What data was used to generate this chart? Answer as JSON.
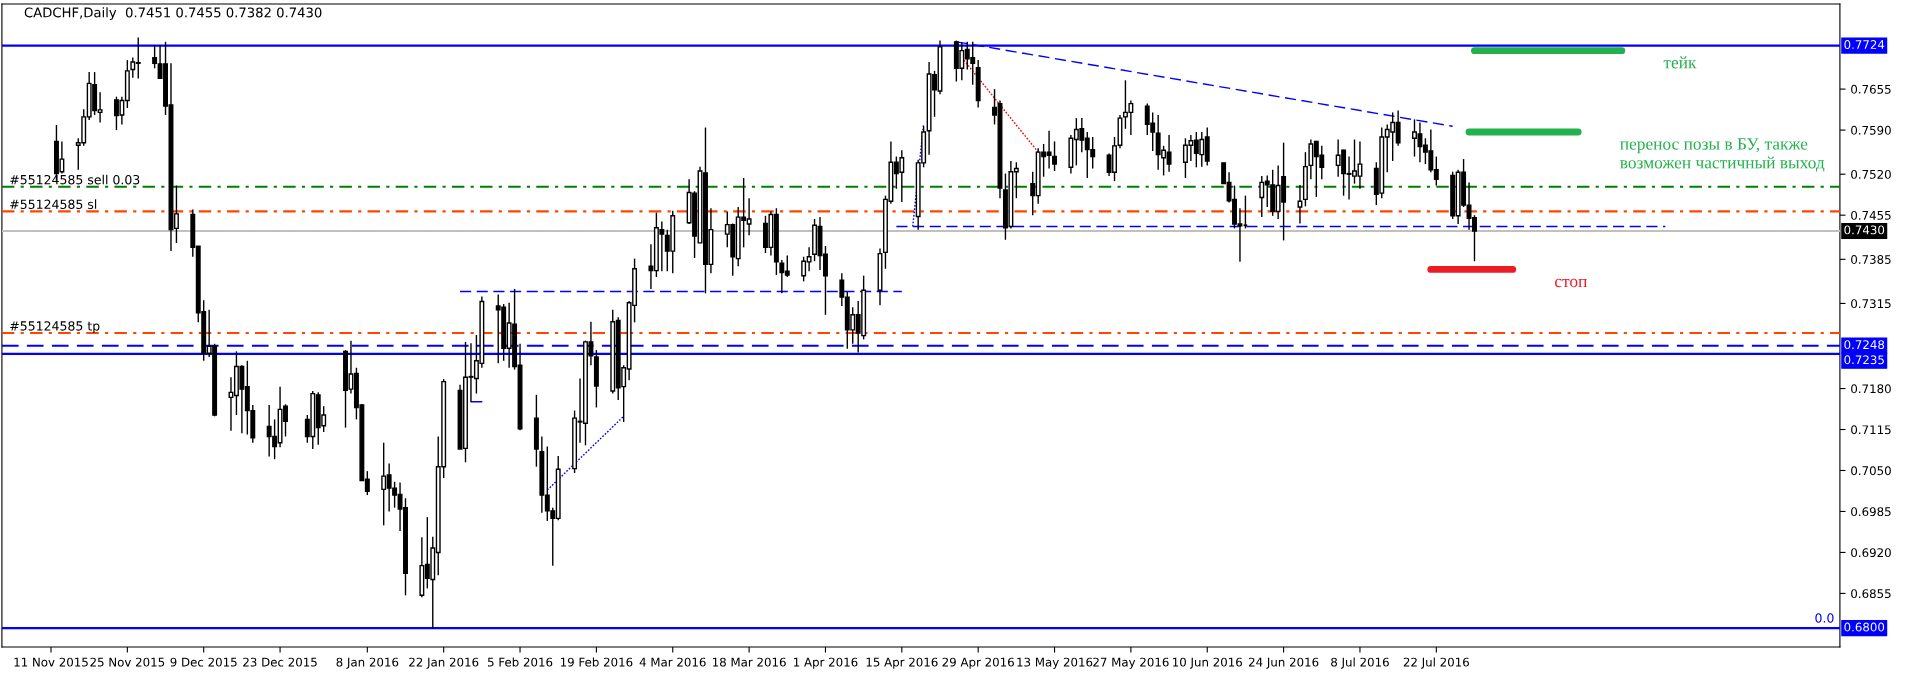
{
  "chart_data": {
    "type": "candlestick",
    "title": "CADCHF,Daily  0.7451 0.7455 0.7382 0.7430",
    "x": [
      "2015-11-12",
      "2015-11-13",
      "2015-11-16",
      "2015-11-17",
      "2015-11-18",
      "2015-11-19",
      "2015-11-20",
      "2015-11-23",
      "2015-11-24",
      "2015-11-25",
      "2015-11-26",
      "2015-11-27",
      "2015-11-30",
      "2015-12-01",
      "2015-12-02",
      "2015-12-03",
      "2015-12-04",
      "2015-12-07",
      "2015-12-08",
      "2015-12-09",
      "2015-12-10",
      "2015-12-11",
      "2015-12-14",
      "2015-12-15",
      "2015-12-16",
      "2015-12-17",
      "2015-12-18",
      "2015-12-21",
      "2015-12-22",
      "2015-12-23",
      "2015-12-24",
      "2015-12-28",
      "2015-12-29",
      "2015-12-30",
      "2015-12-31",
      "2016-01-04",
      "2016-01-05",
      "2016-01-06",
      "2016-01-07",
      "2016-01-08",
      "2016-01-11",
      "2016-01-12",
      "2016-01-13",
      "2016-01-14",
      "2016-01-15",
      "2016-01-18",
      "2016-01-19",
      "2016-01-20",
      "2016-01-21",
      "2016-01-22",
      "2016-01-25",
      "2016-01-26",
      "2016-01-27",
      "2016-01-28",
      "2016-01-29",
      "2016-02-01",
      "2016-02-02",
      "2016-02-03",
      "2016-02-04",
      "2016-02-05",
      "2016-02-08",
      "2016-02-09",
      "2016-02-10",
      "2016-02-11",
      "2016-02-12",
      "2016-02-15",
      "2016-02-16",
      "2016-02-17",
      "2016-02-18",
      "2016-02-19",
      "2016-02-22",
      "2016-02-23",
      "2016-02-24",
      "2016-02-25",
      "2016-02-26",
      "2016-02-29",
      "2016-03-01",
      "2016-03-02",
      "2016-03-03",
      "2016-03-04",
      "2016-03-07",
      "2016-03-08",
      "2016-03-09",
      "2016-03-10",
      "2016-03-11",
      "2016-03-14",
      "2016-03-15",
      "2016-03-16",
      "2016-03-17",
      "2016-03-18",
      "2016-03-21",
      "2016-03-22",
      "2016-03-23",
      "2016-03-24",
      "2016-03-25",
      "2016-03-28",
      "2016-03-29",
      "2016-03-30",
      "2016-03-31",
      "2016-04-01",
      "2016-04-04",
      "2016-04-05",
      "2016-04-06",
      "2016-04-07",
      "2016-04-08",
      "2016-04-11",
      "2016-04-12",
      "2016-04-13",
      "2016-04-14",
      "2016-04-15",
      "2016-04-18",
      "2016-04-19",
      "2016-04-20",
      "2016-04-21",
      "2016-04-22",
      "2016-04-25",
      "2016-04-26",
      "2016-04-27",
      "2016-04-28",
      "2016-04-29",
      "2016-05-02",
      "2016-05-03",
      "2016-05-04",
      "2016-05-05",
      "2016-05-06",
      "2016-05-09",
      "2016-05-10",
      "2016-05-11",
      "2016-05-12",
      "2016-05-13",
      "2016-05-16",
      "2016-05-17",
      "2016-05-18",
      "2016-05-19",
      "2016-05-20",
      "2016-05-23",
      "2016-05-24",
      "2016-05-25",
      "2016-05-26",
      "2016-05-27",
      "2016-05-30",
      "2016-05-31",
      "2016-06-01",
      "2016-06-02",
      "2016-06-03",
      "2016-06-06",
      "2016-06-07",
      "2016-06-08",
      "2016-06-09",
      "2016-06-10",
      "2016-06-13",
      "2016-06-14",
      "2016-06-15",
      "2016-06-16",
      "2016-06-17",
      "2016-06-20",
      "2016-06-21",
      "2016-06-22",
      "2016-06-23",
      "2016-06-24",
      "2016-06-27",
      "2016-06-28",
      "2016-06-29",
      "2016-06-30",
      "2016-07-01",
      "2016-07-04",
      "2016-07-05",
      "2016-07-06",
      "2016-07-07",
      "2016-07-08",
      "2016-07-11",
      "2016-07-12",
      "2016-07-13",
      "2016-07-14",
      "2016-07-15",
      "2016-07-18",
      "2016-07-19",
      "2016-07-20",
      "2016-07-21",
      "2016-07-22",
      "2016-07-25",
      "2016-07-26",
      "2016-07-27",
      "2016-07-28",
      "2016-07-29"
    ],
    "ohlc": [
      [
        0.7572,
        0.7598,
        0.751,
        0.7521
      ],
      [
        0.7524,
        0.7572,
        0.7521,
        0.7544
      ],
      [
        0.7566,
        0.7577,
        0.7527,
        0.757
      ],
      [
        0.757,
        0.7623,
        0.7565,
        0.7611
      ],
      [
        0.7611,
        0.7682,
        0.7606,
        0.7664
      ],
      [
        0.7662,
        0.7682,
        0.7614,
        0.7621
      ],
      [
        0.7618,
        0.765,
        0.7602,
        0.7622
      ],
      [
        0.7638,
        0.7643,
        0.759,
        0.7613
      ],
      [
        0.7614,
        0.7643,
        0.7599,
        0.7637
      ],
      [
        0.7637,
        0.7701,
        0.7625,
        0.7684
      ],
      [
        0.7686,
        0.7705,
        0.7673,
        0.7698
      ],
      [
        0.7696,
        0.7737,
        0.7672,
        0.7697
      ],
      [
        0.7705,
        0.7725,
        0.7688,
        0.7696
      ],
      [
        0.7695,
        0.7725,
        0.7671,
        0.7672
      ],
      [
        0.7695,
        0.773,
        0.7614,
        0.7628
      ],
      [
        0.763,
        0.7696,
        0.7398,
        0.7432
      ],
      [
        0.7434,
        0.7502,
        0.7411,
        0.7457
      ],
      [
        0.7456,
        0.7464,
        0.7389,
        0.7404
      ],
      [
        0.7406,
        0.7406,
        0.7285,
        0.73
      ],
      [
        0.7302,
        0.732,
        0.7224,
        0.7236
      ],
      [
        0.7236,
        0.7305,
        0.723,
        0.7247
      ],
      [
        0.7247,
        0.7251,
        0.7136,
        0.7138
      ],
      [
        0.7166,
        0.7198,
        0.7113,
        0.7174
      ],
      [
        0.7169,
        0.7239,
        0.7138,
        0.7215
      ],
      [
        0.7215,
        0.7217,
        0.7109,
        0.7179
      ],
      [
        0.7183,
        0.7224,
        0.7107,
        0.7145
      ],
      [
        0.7145,
        0.7154,
        0.7094,
        0.7102
      ],
      [
        0.712,
        0.7154,
        0.7072,
        0.7104
      ],
      [
        0.7104,
        0.7131,
        0.7068,
        0.7088
      ],
      [
        0.7094,
        0.7183,
        0.7087,
        0.7147
      ],
      [
        0.7152,
        0.7155,
        0.7104,
        0.7128
      ],
      [
        0.7131,
        0.7138,
        0.7094,
        0.7104
      ],
      [
        0.7104,
        0.7176,
        0.7084,
        0.7172
      ],
      [
        0.717,
        0.7174,
        0.7091,
        0.7118
      ],
      [
        0.7121,
        0.7152,
        0.7111,
        0.7138
      ],
      [
        0.7239,
        0.7241,
        0.7118,
        0.7177
      ],
      [
        0.7179,
        0.7256,
        0.7172,
        0.7203
      ],
      [
        0.7204,
        0.7213,
        0.7131,
        0.715
      ],
      [
        0.7154,
        0.7155,
        0.7034,
        0.7034
      ],
      [
        0.7036,
        0.7049,
        0.7011,
        0.7017
      ],
      [
        0.702,
        0.7094,
        0.6963,
        0.7041
      ],
      [
        0.7043,
        0.7061,
        0.6985,
        0.7022
      ],
      [
        0.7022,
        0.7032,
        0.6991,
        0.7011
      ],
      [
        0.7012,
        0.7031,
        0.6954,
        0.6989
      ],
      [
        0.6991,
        0.7006,
        0.6852,
        0.6887
      ],
      [
        0.6852,
        0.6944,
        0.6849,
        0.6899
      ],
      [
        0.6901,
        0.6976,
        0.6863,
        0.6879
      ],
      [
        0.6877,
        0.6945,
        0.6799,
        0.6927
      ],
      [
        0.692,
        0.7104,
        0.6884,
        0.7056
      ],
      [
        0.7056,
        0.7195,
        0.7038,
        0.7191
      ],
      [
        0.7177,
        0.7186,
        0.7084,
        0.7084
      ],
      [
        0.7085,
        0.7254,
        0.7063,
        0.7198
      ],
      [
        0.7198,
        0.7252,
        0.7159,
        0.7199
      ],
      [
        0.7196,
        0.7265,
        0.7172,
        0.7224
      ],
      [
        0.722,
        0.7326,
        0.7213,
        0.7318
      ],
      [
        0.7311,
        0.7329,
        0.722,
        0.7305
      ],
      [
        0.7309,
        0.7314,
        0.7224,
        0.7244
      ],
      [
        0.7244,
        0.7316,
        0.7213,
        0.7284
      ],
      [
        0.7282,
        0.7338,
        0.721,
        0.7215
      ],
      [
        0.7217,
        0.7251,
        0.7114,
        0.7116
      ],
      [
        0.7133,
        0.717,
        0.7056,
        0.7084
      ],
      [
        0.708,
        0.7104,
        0.6983,
        0.7011
      ],
      [
        0.7011,
        0.7088,
        0.697,
        0.6986
      ],
      [
        0.6986,
        0.6991,
        0.6899,
        0.6974
      ],
      [
        0.6974,
        0.7073,
        0.6971,
        0.7052
      ],
      [
        0.7053,
        0.7145,
        0.7046,
        0.7133
      ],
      [
        0.7127,
        0.7196,
        0.7094,
        0.7128
      ],
      [
        0.7125,
        0.7256,
        0.709,
        0.7254
      ],
      [
        0.7254,
        0.7286,
        0.7217,
        0.7232
      ],
      [
        0.723,
        0.7241,
        0.715,
        0.7184
      ],
      [
        0.7176,
        0.7305,
        0.7172,
        0.7286
      ],
      [
        0.7288,
        0.7293,
        0.7162,
        0.7181
      ],
      [
        0.7183,
        0.7217,
        0.7127,
        0.7213
      ],
      [
        0.7211,
        0.7319,
        0.7193,
        0.7316
      ],
      [
        0.7312,
        0.7386,
        0.7285,
        0.737
      ],
      [
        0.7374,
        0.7409,
        0.7338,
        0.7367
      ],
      [
        0.7367,
        0.7459,
        0.7357,
        0.7435
      ],
      [
        0.7432,
        0.7445,
        0.7366,
        0.7425
      ],
      [
        0.7423,
        0.7432,
        0.7366,
        0.7398
      ],
      [
        0.7398,
        0.7462,
        0.7363,
        0.7454
      ],
      [
        0.7443,
        0.7512,
        0.7441,
        0.7491
      ],
      [
        0.749,
        0.7493,
        0.7387,
        0.7422
      ],
      [
        0.7411,
        0.7532,
        0.7411,
        0.7525
      ],
      [
        0.7522,
        0.7594,
        0.7331,
        0.7377
      ],
      [
        0.7377,
        0.7466,
        0.7363,
        0.7432
      ],
      [
        0.7425,
        0.7461,
        0.7404,
        0.744
      ],
      [
        0.744,
        0.7442,
        0.7359,
        0.7389
      ],
      [
        0.7386,
        0.7468,
        0.7374,
        0.7452
      ],
      [
        0.7452,
        0.7514,
        0.7404,
        0.7447
      ],
      [
        0.7441,
        0.7482,
        0.7423,
        0.7449
      ],
      [
        0.7442,
        0.7454,
        0.7395,
        0.7404
      ],
      [
        0.7404,
        0.7461,
        0.7391,
        0.7456
      ],
      [
        0.7456,
        0.7466,
        0.736,
        0.7381
      ],
      [
        0.7379,
        0.7384,
        0.7331,
        0.7364
      ],
      [
        0.7366,
        0.7391,
        0.7357,
        0.736
      ],
      [
        0.7359,
        0.7389,
        0.735,
        0.7382
      ],
      [
        0.7381,
        0.7404,
        0.7366,
        0.7389
      ],
      [
        0.7393,
        0.7449,
        0.7382,
        0.7439
      ],
      [
        0.7437,
        0.7452,
        0.7368,
        0.7391
      ],
      [
        0.7393,
        0.7406,
        0.7297,
        0.7359
      ],
      [
        0.7352,
        0.7363,
        0.7311,
        0.7325
      ],
      [
        0.7325,
        0.7333,
        0.7243,
        0.7273
      ],
      [
        0.7273,
        0.7309,
        0.7251,
        0.7297
      ],
      [
        0.7297,
        0.7319,
        0.7237,
        0.7268
      ],
      [
        0.7264,
        0.7359,
        0.7258,
        0.7336
      ],
      [
        0.7336,
        0.7402,
        0.7312,
        0.7394
      ],
      [
        0.7396,
        0.7486,
        0.737,
        0.748
      ],
      [
        0.7477,
        0.7572,
        0.7473,
        0.7539
      ],
      [
        0.7539,
        0.7548,
        0.7497,
        0.7521
      ],
      [
        0.7523,
        0.7558,
        0.7476,
        0.7546
      ],
      [
        0.7453,
        0.7543,
        0.7432,
        0.7538
      ],
      [
        0.7538,
        0.7596,
        0.7531,
        0.7587
      ],
      [
        0.7589,
        0.7698,
        0.7551,
        0.7679
      ],
      [
        0.7678,
        0.7684,
        0.7611,
        0.7654
      ],
      [
        0.7652,
        0.7732,
        0.7647,
        0.7722
      ],
      [
        0.773,
        0.7732,
        0.7667,
        0.7688
      ],
      [
        0.7688,
        0.7729,
        0.7669,
        0.7716
      ],
      [
        0.7718,
        0.773,
        0.7686,
        0.7703
      ],
      [
        0.7705,
        0.773,
        0.7662,
        0.7696
      ],
      [
        0.7689,
        0.7701,
        0.7626,
        0.7637
      ],
      [
        0.7626,
        0.7655,
        0.7599,
        0.7614
      ],
      [
        0.7632,
        0.7637,
        0.7482,
        0.7498
      ],
      [
        0.7495,
        0.7521,
        0.7416,
        0.7435
      ],
      [
        0.7437,
        0.7541,
        0.7434,
        0.7524
      ],
      [
        0.7524,
        0.7539,
        0.7482,
        0.7529
      ],
      [
        0.7505,
        0.7524,
        0.7455,
        0.7486
      ],
      [
        0.7486,
        0.7561,
        0.7473,
        0.7555
      ],
      [
        0.7555,
        0.7568,
        0.7516,
        0.7548
      ],
      [
        0.7555,
        0.7589,
        0.7529,
        0.755
      ],
      [
        0.7548,
        0.7572,
        0.7525,
        0.7536
      ],
      [
        0.7531,
        0.7582,
        0.7521,
        0.7577
      ],
      [
        0.7575,
        0.7609,
        0.7534,
        0.7591
      ],
      [
        0.7592,
        0.7609,
        0.7555,
        0.7574
      ],
      [
        0.7577,
        0.7587,
        0.7514,
        0.7559
      ],
      [
        0.7559,
        0.7579,
        0.7529,
        0.7548
      ],
      [
        0.755,
        0.7553,
        0.7517,
        0.7523
      ],
      [
        0.7523,
        0.7579,
        0.7509,
        0.7565
      ],
      [
        0.7566,
        0.7614,
        0.7561,
        0.7609
      ],
      [
        0.7611,
        0.7669,
        0.7592,
        0.7618
      ],
      [
        0.7618,
        0.7637,
        0.7582,
        0.7632
      ],
      [
        0.7628,
        0.7632,
        0.7582,
        0.7599
      ],
      [
        0.7601,
        0.7618,
        0.7557,
        0.7587
      ],
      [
        0.7585,
        0.7614,
        0.7527,
        0.7551
      ],
      [
        0.7546,
        0.7565,
        0.7518,
        0.7558
      ],
      [
        0.7555,
        0.7582,
        0.7524,
        0.7536
      ],
      [
        0.7539,
        0.7577,
        0.7514,
        0.7566
      ],
      [
        0.7566,
        0.7582,
        0.7541,
        0.7573
      ],
      [
        0.7574,
        0.7587,
        0.7531,
        0.7553
      ],
      [
        0.7551,
        0.7587,
        0.7532,
        0.7575
      ],
      [
        0.7579,
        0.7594,
        0.7534,
        0.7541
      ],
      [
        0.7538,
        0.7538,
        0.7505,
        0.7505
      ],
      [
        0.7507,
        0.7523,
        0.7475,
        0.7478
      ],
      [
        0.748,
        0.7502,
        0.7434,
        0.7441
      ],
      [
        0.7441,
        0.7466,
        0.7381,
        0.7438
      ],
      [
        0.7439,
        0.7486,
        0.7434,
        0.7439
      ],
      [
        0.7483,
        0.7517,
        0.7452,
        0.7507
      ],
      [
        0.7509,
        0.7518,
        0.7468,
        0.7503
      ],
      [
        0.7503,
        0.7527,
        0.7454,
        0.7461
      ],
      [
        0.7461,
        0.7534,
        0.7449,
        0.7502
      ],
      [
        0.7516,
        0.757,
        0.7415,
        0.7476
      ],
      [
        0.7468,
        0.7503,
        0.7442,
        0.7477
      ],
      [
        0.748,
        0.7555,
        0.7469,
        0.7532
      ],
      [
        0.7534,
        0.7575,
        0.7512,
        0.7568
      ],
      [
        0.7572,
        0.7573,
        0.7484,
        0.7548
      ],
      [
        0.755,
        0.7565,
        0.7512,
        0.7531
      ],
      [
        0.7534,
        0.7575,
        0.7516,
        0.755
      ],
      [
        0.7558,
        0.7559,
        0.7486,
        0.7521
      ],
      [
        0.7521,
        0.7548,
        0.748,
        0.752
      ],
      [
        0.7517,
        0.7575,
        0.7505,
        0.7525
      ],
      [
        0.7517,
        0.7572,
        0.7497,
        0.7536
      ],
      [
        0.7529,
        0.7539,
        0.7471,
        0.7488
      ],
      [
        0.749,
        0.7594,
        0.7482,
        0.7579
      ],
      [
        0.7579,
        0.7599,
        0.7523,
        0.7591
      ],
      [
        0.7587,
        0.7618,
        0.7541,
        0.7602
      ],
      [
        0.7602,
        0.7621,
        0.7565,
        0.757
      ],
      [
        0.7577,
        0.7607,
        0.7548,
        0.7587
      ],
      [
        0.7584,
        0.7602,
        0.7539,
        0.7564
      ],
      [
        0.7566,
        0.7577,
        0.7536,
        0.7555
      ],
      [
        0.7557,
        0.7591,
        0.7523,
        0.7527
      ],
      [
        0.7527,
        0.7548,
        0.7502,
        0.7512
      ],
      [
        0.7518,
        0.7524,
        0.7449,
        0.7454
      ],
      [
        0.7454,
        0.7527,
        0.7441,
        0.7523
      ],
      [
        0.7523,
        0.7544,
        0.7468,
        0.7471
      ],
      [
        0.7471,
        0.7507,
        0.7432,
        0.745
      ],
      [
        0.7451,
        0.7455,
        0.7382,
        0.743
      ]
    ],
    "series": [
      {
        "type": "line",
        "x": [
          "2016-04-25",
          "2016-07-25"
        ],
        "values": [
          0.773,
          0.7596
        ],
        "color": "#0000ff",
        "line_style": "dashed"
      },
      {
        "type": "line",
        "x": [
          "2016-04-14",
          "2016-09-02"
        ],
        "values": [
          0.7437,
          0.7437
        ],
        "color": "#0000ff",
        "line_style": "dashed"
      },
      {
        "type": "line",
        "x": [
          "2016-01-25",
          "2016-04-15"
        ],
        "values": [
          0.7334,
          0.7334
        ],
        "color": "#0000ff",
        "line_style": "dashed"
      },
      {
        "type": "line",
        "x": [
          "2016-01-27",
          "2016-01-29"
        ],
        "values": [
          0.7159,
          0.7159
        ],
        "color": "#0000ff",
        "line_style": "solid"
      },
      {
        "type": "line",
        "x": [
          "2016-02-10",
          "2016-02-24"
        ],
        "values": [
          0.7019,
          0.7136
        ],
        "color": "#0000ff",
        "line_style": "dotted"
      },
      {
        "type": "line",
        "x": [
          "2016-04-17",
          "2016-04-19"
        ],
        "values": [
          0.7437,
          0.76
        ],
        "color": "#0000ff",
        "line_style": "dotted"
      },
      {
        "type": "line",
        "x": [
          "2016-04-26",
          "2016-05-10"
        ],
        "values": [
          0.7705,
          0.7555
        ],
        "color": "#ff0000",
        "line_style": "dotted"
      },
      {
        "type": "line",
        "name": "тейк",
        "x": [
          "2016-07-29",
          "2016-08-25"
        ],
        "values": [
          0.7716,
          0.7716
        ],
        "color": "#22b14c",
        "line_style": "solid"
      },
      {
        "type": "line",
        "name": "перенос позы в БУ, также\nвозможен частичный выход",
        "x": [
          "2016-07-28",
          "2016-08-17"
        ],
        "values": [
          0.7587,
          0.7587
        ],
        "color": "#22b14c",
        "line_style": "solid"
      },
      {
        "type": "line",
        "name": "стоп",
        "x": [
          "2016-07-21",
          "2016-08-05"
        ],
        "values": [
          0.7369,
          0.7369
        ],
        "color": "#ed1c24",
        "line_style": "solid"
      }
    ],
    "ref_lines": [
      {
        "axis": "y",
        "value": 0.7724,
        "label": "0.7724",
        "color": "#0000ff",
        "line_style": "solid"
      },
      {
        "axis": "y",
        "value": 0.75,
        "label": "#55124585 sell 0.03",
        "color": "#008000",
        "line_style": "dashdot"
      },
      {
        "axis": "y",
        "value": 0.7461,
        "label": "#55124585 sl",
        "color": "#ff4500",
        "line_style": "dashdot"
      },
      {
        "axis": "y",
        "value": 0.743,
        "label": "0.7430",
        "color": "#c0c0c0",
        "line_style": "solid"
      },
      {
        "axis": "y",
        "value": 0.7268,
        "label": "#55124585 tp",
        "color": "#ff4500",
        "line_style": "dashdot"
      },
      {
        "axis": "y",
        "value": 0.7248,
        "label": "0.7248",
        "color": "#0000ff",
        "line_style": "dashed"
      },
      {
        "axis": "y",
        "value": 0.7235,
        "label": "0.7235",
        "color": "#0000ff",
        "line_style": "solid"
      },
      {
        "axis": "y",
        "value": 0.68,
        "label": "0.6800",
        "color": "#0000ff",
        "line_style": "solid"
      }
    ],
    "annotations": [
      "0.0"
    ],
    "xlim": [
      "2015-11-02",
      "2016-10-04"
    ],
    "xticks": [
      {
        "value": "2015-11-11",
        "label": "11 Nov 2015"
      },
      {
        "value": "2015-11-25",
        "label": "25 Nov 2015"
      },
      {
        "value": "2015-12-09",
        "label": "9 Dec 2015"
      },
      {
        "value": "2015-12-23",
        "label": "23 Dec 2015"
      },
      {
        "value": "2016-01-08",
        "label": "8 Jan 2016"
      },
      {
        "value": "2016-01-22",
        "label": "22 Jan 2016"
      },
      {
        "value": "2016-02-05",
        "label": "5 Feb 2016"
      },
      {
        "value": "2016-02-19",
        "label": "19 Feb 2016"
      },
      {
        "value": "2016-03-04",
        "label": "4 Mar 2016"
      },
      {
        "value": "2016-03-18",
        "label": "18 Mar 2016"
      },
      {
        "value": "2016-04-01",
        "label": "1 Apr 2016"
      },
      {
        "value": "2016-04-15",
        "label": "15 Apr 2016"
      },
      {
        "value": "2016-04-29",
        "label": "29 Apr 2016"
      },
      {
        "value": "2016-05-13",
        "label": "13 May 2016"
      },
      {
        "value": "2016-05-27",
        "label": "27 May 2016"
      },
      {
        "value": "2016-06-10",
        "label": "10 Jun 2016"
      },
      {
        "value": "2016-06-24",
        "label": "24 Jun 2016"
      },
      {
        "value": "2016-07-08",
        "label": "8 Jul 2016"
      },
      {
        "value": "2016-07-22",
        "label": "22 Jul 2016"
      }
    ],
    "ylim": [
      0.677,
      0.779
    ],
    "yticks": [
      0.7655,
      {
        "value": 0.759,
        "label": "0.7590"
      },
      {
        "value": 0.752,
        "label": "0.7520"
      },
      0.7455,
      0.7385,
      0.7315,
      {
        "value": 0.718,
        "label": "0.7180"
      },
      0.7115,
      {
        "value": 0.705,
        "label": "0.7050"
      },
      0.6985,
      {
        "value": 0.692,
        "label": "0.6920"
      },
      0.6855
    ]
  }
}
